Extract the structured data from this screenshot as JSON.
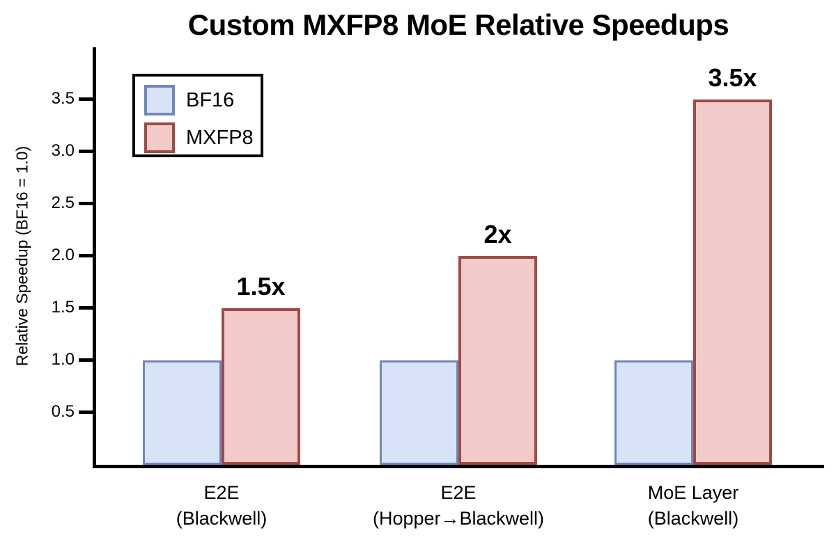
{
  "chart_data": {
    "type": "bar",
    "title": "Custom MXFP8 MoE Relative Speedups",
    "ylabel": "Relative Speedup (BF16 = 1.0)",
    "xlabel": "",
    "ylim": [
      0,
      4.0
    ],
    "yticks": [
      0.5,
      1.0,
      1.5,
      2.0,
      2.5,
      3.0,
      3.5
    ],
    "ytick_labels": [
      "0.5",
      "1.0",
      "1.5",
      "2.0",
      "2.5",
      "3.0",
      "3.5"
    ],
    "grid": false,
    "legend_position": "upper-left",
    "categories": [
      {
        "line1": "E2E",
        "line2": "(Blackwell)"
      },
      {
        "line1": "E2E",
        "line2": "(Hopper→Blackwell)"
      },
      {
        "line1": "MoE Layer",
        "line2": "(Blackwell)"
      }
    ],
    "series": [
      {
        "name": "BF16",
        "values": [
          1.0,
          1.0,
          1.0
        ],
        "value_labels": [
          "",
          "",
          ""
        ],
        "fill": "#d9e3f8",
        "edge": "#6f87c0",
        "edge_width": 3
      },
      {
        "name": "MXFP8",
        "values": [
          1.5,
          2.0,
          3.5
        ],
        "value_labels": [
          "1.5x",
          "2x",
          "3.5x"
        ],
        "fill": "#f2cac9",
        "edge": "#9e4b47",
        "edge_width": 4
      }
    ],
    "colors": {
      "axis": "#000000",
      "text": "#000000",
      "background": "#ffffff"
    }
  }
}
